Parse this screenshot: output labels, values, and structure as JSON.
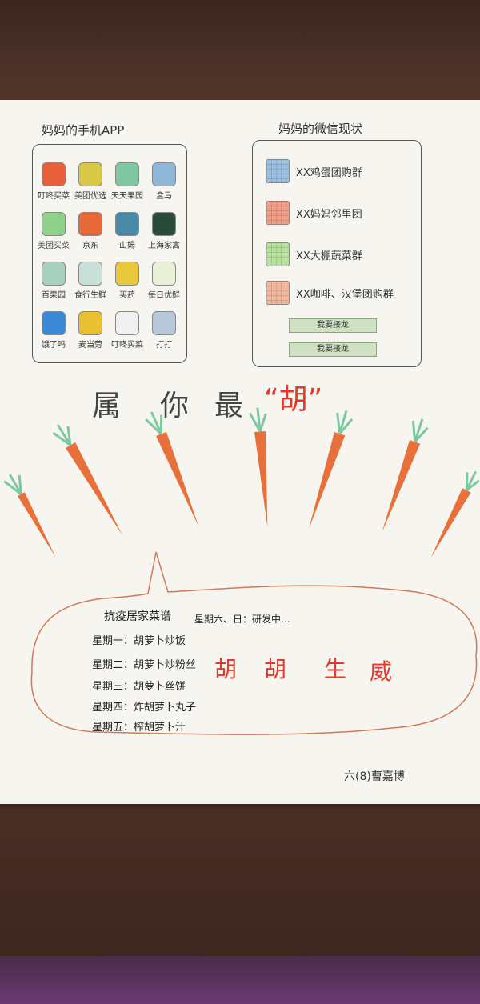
{
  "phone_section": {
    "title": "妈妈的手机APP",
    "apps": [
      {
        "label": "叮咚买菜",
        "color": "#e8603a",
        "icon": "carrot-icon"
      },
      {
        "label": "美团优选",
        "color": "#d8c846",
        "icon": "bag-icon"
      },
      {
        "label": "天天果园",
        "color": "#7fc7a2",
        "icon": "square-icon"
      },
      {
        "label": "盒马",
        "color": "#8fb8d8",
        "icon": "fish-icon"
      },
      {
        "label": "美团买菜",
        "color": "#8fd08a",
        "icon": "leaf-icon"
      },
      {
        "label": "京东",
        "color": "#e86a3a",
        "icon": "dog-icon"
      },
      {
        "label": "山姆",
        "color": "#4a8aa8",
        "icon": "diamond-icon"
      },
      {
        "label": "上海家禽",
        "color": "#2a4a3a",
        "icon": "poultry-icon"
      },
      {
        "label": "百果园",
        "color": "#a8d0c0",
        "icon": "fruit-icon"
      },
      {
        "label": "食行生鲜",
        "color": "#c8e0d8",
        "icon": "basket-icon"
      },
      {
        "label": "买药",
        "color": "#e8c83a",
        "icon": "pill-icon"
      },
      {
        "label": "每日优鲜",
        "color": "#e8f0d8",
        "icon": "fresh-icon"
      },
      {
        "label": "饿了吗",
        "color": "#3a8ad8",
        "icon": "e-icon"
      },
      {
        "label": "麦当劳",
        "color": "#e8c030",
        "icon": "m-icon"
      },
      {
        "label": "叮咚买菜",
        "color": "#f0f0f0",
        "icon": "heart-icon"
      },
      {
        "label": "打打",
        "color": "#b8c8d8",
        "icon": "bottle-icon"
      }
    ]
  },
  "wechat_section": {
    "title": "妈妈的微信现状",
    "groups": [
      {
        "label": "XX鸡蛋团购群",
        "color": "#9ec0e0"
      },
      {
        "label": "XX妈妈邻里团",
        "color": "#f0a08a"
      },
      {
        "label": "XX大棚蔬菜群",
        "color": "#b8e0a0"
      },
      {
        "label": "XX咖啡、汉堡团购群",
        "color": "#f0b8a0"
      }
    ],
    "buttons": [
      "我要接龙",
      "我要接龙"
    ]
  },
  "slogan": {
    "part1": "属",
    "part2": "你",
    "part3": "最",
    "highlight": "“胡”"
  },
  "recipe": {
    "title": "抗疫居家菜谱",
    "weekend": "星期六、日：研发中…",
    "days": [
      "星期一：胡萝卜炒饭",
      "星期二：胡萝卜炒粉丝",
      "星期三：胡萝卜丝饼",
      "星期四：炸胡萝卜丸子",
      "星期五：榨胡萝卜汁"
    ],
    "big_text": [
      "胡",
      "胡",
      "生",
      "威"
    ]
  },
  "signature": "六(8)曹嘉博",
  "colors": {
    "carrot": "#e8703a",
    "leaf": "#7ec8a0",
    "red": "#e03a2a"
  }
}
